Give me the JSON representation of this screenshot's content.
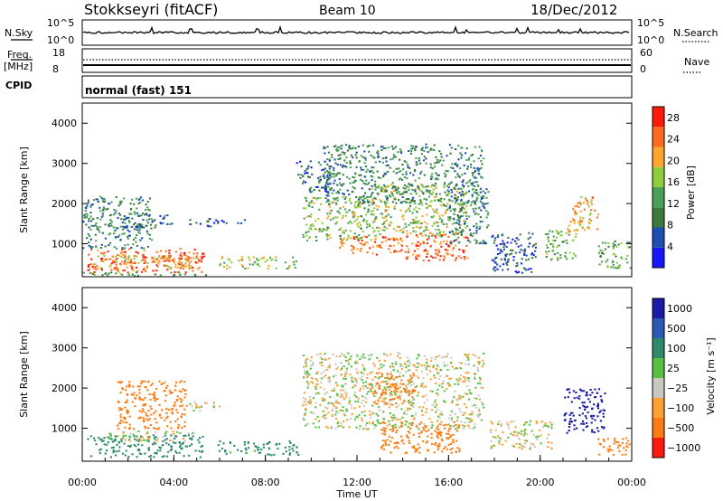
{
  "header": {
    "station": "Stokkseyri (fitACF)",
    "beam": "Beam 10",
    "date": "18/Dec/2012"
  },
  "nsky_panel": {
    "left_label": "N.Sky",
    "right_label": "N.Search",
    "left_ticks": [
      "10^5",
      "10^0"
    ],
    "right_ticks": [
      "10^5",
      "10^0"
    ]
  },
  "freq_panel": {
    "left_label_1": "Freq.",
    "left_label_2": "[MHz]",
    "right_label": "Nave",
    "left_ticks": [
      "18",
      "8"
    ],
    "right_ticks": [
      "60",
      "0"
    ],
    "cpid_label": "CPID"
  },
  "mode_text": "normal (fast) 151",
  "colors": {
    "power_scale": [
      "#1616ff",
      "#1e4fb0",
      "#3b7a3c",
      "#4aa05a",
      "#8fcd3a",
      "#ffa52a",
      "#ff6b1e",
      "#ff1a0a"
    ],
    "velocity_scale": [
      "#1a1aa6",
      "#2a5ab6",
      "#2e8a6a",
      "#58c040",
      "#c8c8c0",
      "#ffa030",
      "#ff7a10",
      "#ff1a10"
    ]
  },
  "chart_data": [
    {
      "type": "heatmap",
      "panel": "power",
      "xlabel": "",
      "ylabel": "Slant Range [km]",
      "xlim": [
        0,
        24
      ],
      "ylim": [
        180,
        4500
      ],
      "yticks": [
        "1000",
        "2000",
        "3000",
        "4000"
      ],
      "colorbar": {
        "label": "Power [dB]",
        "ticks": [
          "4",
          "8",
          "12",
          "16",
          "20",
          "24",
          "28"
        ],
        "range": [
          0,
          30
        ]
      },
      "regions": [
        {
          "t0": 0.2,
          "t1": 5.3,
          "r0": 300,
          "r1": 900,
          "value": 26
        },
        {
          "t0": 0.4,
          "t1": 5.0,
          "r0": 400,
          "r1": 750,
          "value": 20
        },
        {
          "t0": 0.0,
          "t1": 3.0,
          "r0": 900,
          "r1": 2200,
          "value": 10
        },
        {
          "t0": 1.5,
          "t1": 4.0,
          "r0": 1400,
          "r1": 1750,
          "value": 8
        },
        {
          "t0": 4.5,
          "t1": 5.9,
          "r0": 1450,
          "r1": 1650,
          "value": 6
        },
        {
          "t0": 6.0,
          "t1": 7.1,
          "r0": 1520,
          "r1": 1620,
          "value": 5
        },
        {
          "t0": 5.9,
          "t1": 9.4,
          "r0": 400,
          "r1": 700,
          "value": 17
        },
        {
          "t0": 9.6,
          "t1": 12.8,
          "r0": 1100,
          "r1": 2200,
          "value": 15
        },
        {
          "t0": 11.0,
          "t1": 14.0,
          "r0": 750,
          "r1": 1200,
          "value": 24
        },
        {
          "t0": 12.5,
          "t1": 16.8,
          "r0": 1200,
          "r1": 2500,
          "value": 16
        },
        {
          "t0": 14.0,
          "t1": 16.8,
          "r0": 600,
          "r1": 1300,
          "value": 25
        },
        {
          "t0": 16.0,
          "t1": 17.7,
          "r0": 1000,
          "r1": 2400,
          "value": 9
        },
        {
          "t0": 10.5,
          "t1": 17.5,
          "r0": 2000,
          "r1": 3500,
          "value": 10
        },
        {
          "t0": 9.3,
          "t1": 10.8,
          "r0": 2300,
          "r1": 3100,
          "value": 7
        },
        {
          "t0": 17.8,
          "t1": 19.8,
          "r0": 300,
          "r1": 1300,
          "value": 6
        },
        {
          "t0": 20.2,
          "t1": 21.6,
          "r0": 600,
          "r1": 1400,
          "value": 14
        },
        {
          "t0": 21.2,
          "t1": 22.5,
          "r0": 1300,
          "r1": 2200,
          "value": 22
        },
        {
          "t0": 22.5,
          "t1": 24.0,
          "r0": 400,
          "r1": 1100,
          "value": 13
        },
        {
          "t0": 0.0,
          "t1": 5.5,
          "r0": 180,
          "r1": 320,
          "value": 12
        }
      ]
    },
    {
      "type": "heatmap",
      "panel": "velocity",
      "xlabel": "Time UT",
      "ylabel": "Slant Range [km]",
      "xlim": [
        0,
        24
      ],
      "ylim": [
        180,
        4500
      ],
      "xticks": [
        "00:00",
        "04:00",
        "08:00",
        "12:00",
        "16:00",
        "20:00",
        "00:00"
      ],
      "yticks": [
        "1000",
        "2000",
        "3000",
        "4000"
      ],
      "colorbar": {
        "label": "Velocity [m s⁻¹]",
        "ticks": [
          "1000",
          "500",
          "100",
          "25",
          "−25",
          "−100",
          "−500",
          "−1000"
        ]
      },
      "regions": [
        {
          "t0": 0.2,
          "t1": 5.3,
          "r0": 300,
          "r1": 850,
          "value": 300
        },
        {
          "t0": 1.0,
          "t1": 4.8,
          "r0": 700,
          "r1": 950,
          "value": 0
        },
        {
          "t0": 5.9,
          "t1": 9.4,
          "r0": 350,
          "r1": 700,
          "value": 150
        },
        {
          "t0": 1.5,
          "t1": 4.5,
          "r0": 1000,
          "r1": 2200,
          "value": -300
        },
        {
          "t0": 4.5,
          "t1": 6.0,
          "r0": 1450,
          "r1": 1700,
          "value": 0
        },
        {
          "t0": 9.6,
          "t1": 17.5,
          "r0": 1000,
          "r1": 2900,
          "value": 0
        },
        {
          "t0": 13.0,
          "t1": 16.5,
          "r0": 400,
          "r1": 1200,
          "value": -300
        },
        {
          "t0": 12.5,
          "t1": 14.5,
          "r0": 1600,
          "r1": 2400,
          "value": -400
        },
        {
          "t0": 17.8,
          "t1": 20.5,
          "r0": 500,
          "r1": 1200,
          "value": 0
        },
        {
          "t0": 21.0,
          "t1": 22.8,
          "r0": 900,
          "r1": 2000,
          "value": 600
        },
        {
          "t0": 22.5,
          "t1": 24.0,
          "r0": 350,
          "r1": 800,
          "value": -200
        }
      ]
    }
  ]
}
